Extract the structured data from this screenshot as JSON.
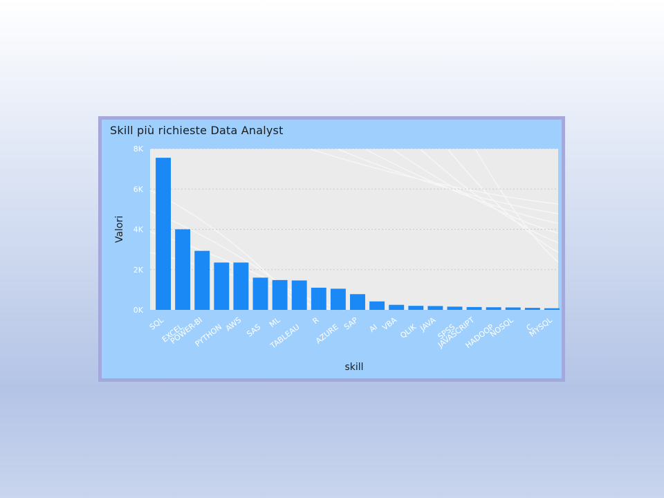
{
  "chart_data": {
    "type": "bar",
    "title": "Skill più richieste Data Analyst",
    "xlabel": "skill",
    "ylabel": "Valori",
    "ylim": [
      0,
      8000
    ],
    "yticks": [
      0,
      2000,
      4000,
      6000,
      8000
    ],
    "ytick_labels": [
      "0K",
      "2K",
      "4K",
      "6K",
      "8K"
    ],
    "grid": true,
    "legend": "none",
    "bar_color": "#1a88f5",
    "categories": [
      "SQL",
      "EXCEL",
      "POWER-BI",
      "PYTHON",
      "AWS",
      "SAS",
      "ML",
      "TABLEAU",
      "R",
      "AZURE",
      "SAP",
      "AI",
      "VBA",
      "QLIK",
      "JAVA",
      "SPSS",
      "JAVASCRIPT",
      "HADOOP",
      "NOSQL",
      "C",
      "MYSQL"
    ],
    "values": [
      7550,
      4000,
      2930,
      2350,
      2350,
      1600,
      1480,
      1460,
      1100,
      1050,
      780,
      420,
      250,
      200,
      190,
      160,
      140,
      130,
      120,
      100,
      80
    ]
  }
}
